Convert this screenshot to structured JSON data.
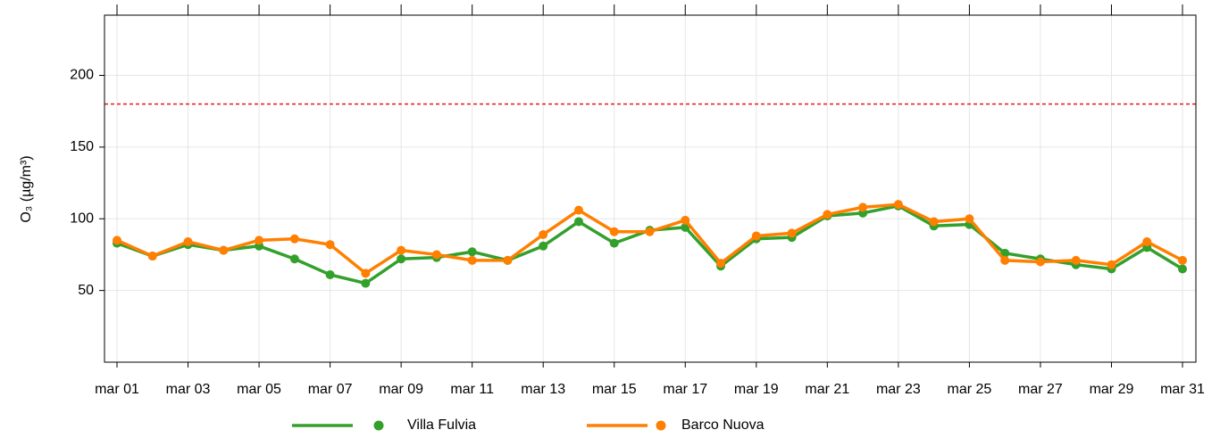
{
  "chart_data": {
    "type": "line",
    "y_label": "O₃ (µg/m³)",
    "categories": [
      "mar 01",
      null,
      "mar 03",
      null,
      "mar 05",
      null,
      "mar 07",
      null,
      "mar 09",
      null,
      "mar 11",
      null,
      "mar 13",
      null,
      "mar 15",
      null,
      "mar 17",
      null,
      "mar 19",
      null,
      "mar 21",
      null,
      "mar 23",
      null,
      "mar 25",
      null,
      "mar 27",
      null,
      "mar 29",
      null,
      "mar 31"
    ],
    "series": [
      {
        "name": "Villa Fulvia",
        "color": "#33a02c",
        "values": [
          83,
          74,
          82,
          78,
          81,
          72,
          61,
          55,
          72,
          73,
          77,
          71,
          81,
          98,
          83,
          92,
          94,
          67,
          86,
          87,
          102,
          104,
          109,
          95,
          96,
          76,
          72,
          68,
          65,
          80,
          65
        ]
      },
      {
        "name": "Barco Nuova",
        "color": "#ff7f00",
        "values": [
          85,
          74,
          84,
          78,
          85,
          86,
          82,
          62,
          78,
          75,
          71,
          71,
          89,
          106,
          91,
          91,
          99,
          69,
          88,
          90,
          103,
          108,
          110,
          98,
          100,
          71,
          70,
          71,
          68,
          84,
          71
        ]
      }
    ],
    "threshold": {
      "value": 180,
      "color": "#e41a1c"
    },
    "ylim": [
      0,
      242
    ],
    "yticks": [
      50,
      100,
      150,
      200
    ],
    "grid": true,
    "legend": "bottom"
  }
}
